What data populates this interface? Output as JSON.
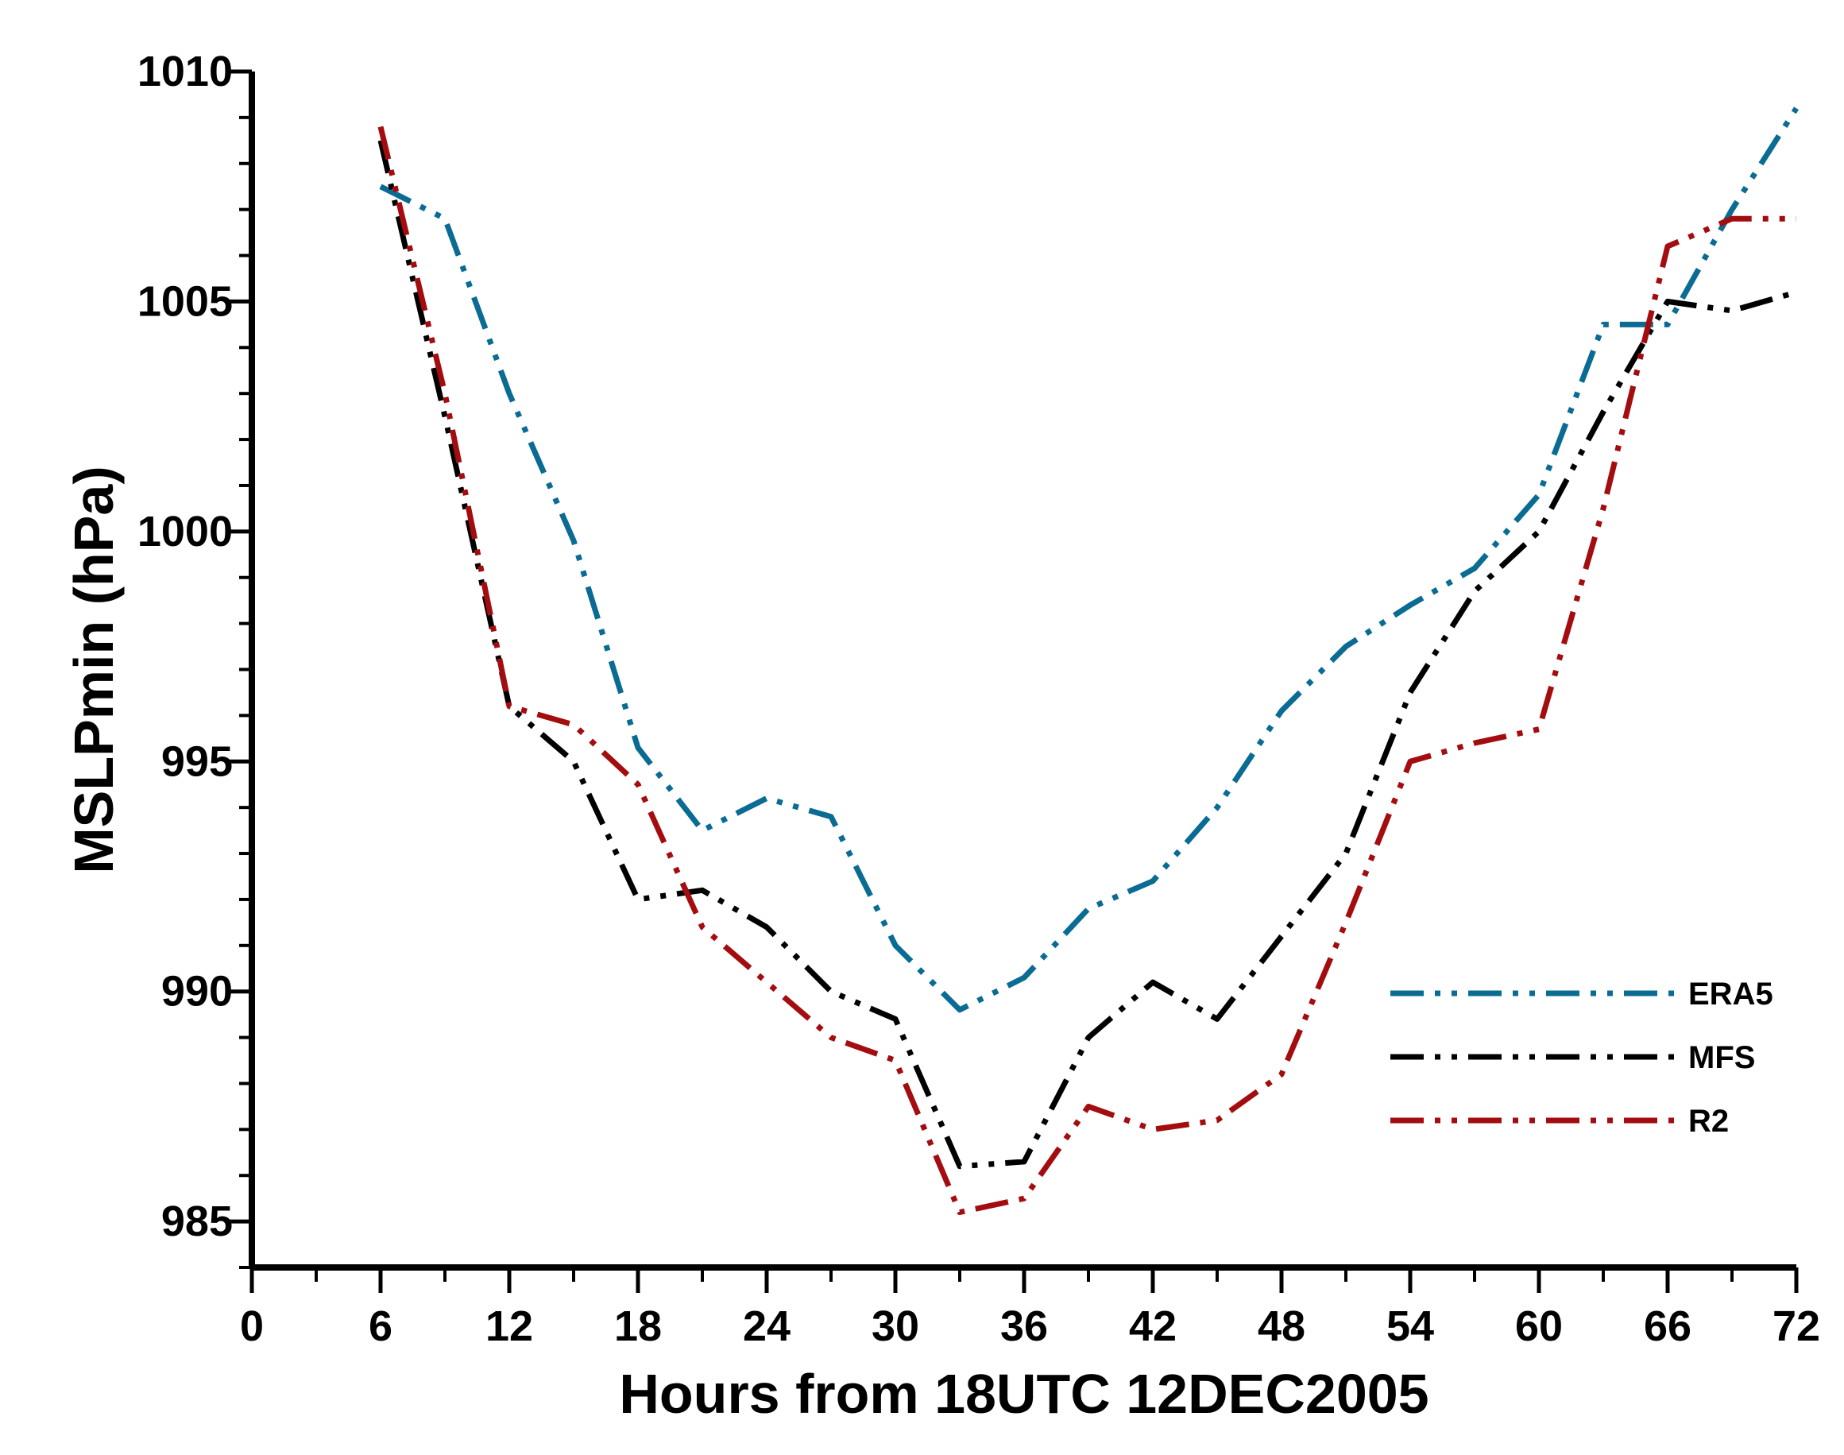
{
  "chart_data": {
    "type": "line",
    "xlabel": "Hours from 18UTC 12DEC2005",
    "ylabel": "MSLPmin (hPa)",
    "xlim": [
      0,
      72
    ],
    "ylim": [
      984,
      1010
    ],
    "xticks": [
      0,
      6,
      12,
      18,
      24,
      30,
      36,
      42,
      48,
      54,
      60,
      66,
      72
    ],
    "yticks": [
      985,
      990,
      995,
      1000,
      1005,
      1010
    ],
    "grid": false,
    "legend_position": "bottom-right",
    "series": [
      {
        "name": "ERA5",
        "color": "#0a6b93",
        "x": [
          6,
          9,
          12,
          15,
          18,
          21,
          24,
          27,
          30,
          33,
          36,
          39,
          42,
          45,
          48,
          51,
          54,
          57,
          60,
          63,
          66,
          69,
          72
        ],
        "y": [
          1007.5,
          1006.8,
          1003.0,
          999.8,
          995.3,
          993.5,
          994.2,
          993.8,
          991.0,
          989.6,
          990.3,
          991.8,
          992.4,
          994.0,
          996.1,
          997.5,
          998.4,
          999.2,
          1000.8,
          1004.5,
          1004.5,
          1007.0,
          1009.2
        ]
      },
      {
        "name": "MFS",
        "color": "#000000",
        "x": [
          6,
          9,
          12,
          15,
          18,
          21,
          24,
          27,
          30,
          33,
          36,
          39,
          42,
          45,
          48,
          51,
          54,
          57,
          60,
          63,
          66,
          69,
          72
        ],
        "y": [
          1008.5,
          1002.5,
          996.2,
          995.0,
          992.0,
          992.2,
          991.4,
          990.0,
          989.4,
          986.2,
          986.3,
          989.0,
          990.2,
          989.4,
          991.2,
          993.0,
          996.5,
          998.7,
          1000.0,
          1002.6,
          1005.0,
          1004.8,
          1005.2
        ]
      },
      {
        "name": "R2",
        "color": "#a40d10",
        "x": [
          6,
          9,
          12,
          15,
          18,
          21,
          24,
          27,
          30,
          33,
          36,
          39,
          42,
          45,
          48,
          51,
          54,
          57,
          60,
          63,
          66,
          69,
          72
        ],
        "y": [
          1008.8,
          1003.0,
          996.2,
          995.8,
          994.5,
          991.4,
          990.2,
          989.0,
          988.5,
          985.2,
          985.5,
          987.5,
          987.0,
          987.2,
          988.2,
          991.5,
          995.0,
          995.4,
          995.7,
          1000.5,
          1006.2,
          1006.8,
          1006.8
        ]
      }
    ]
  }
}
